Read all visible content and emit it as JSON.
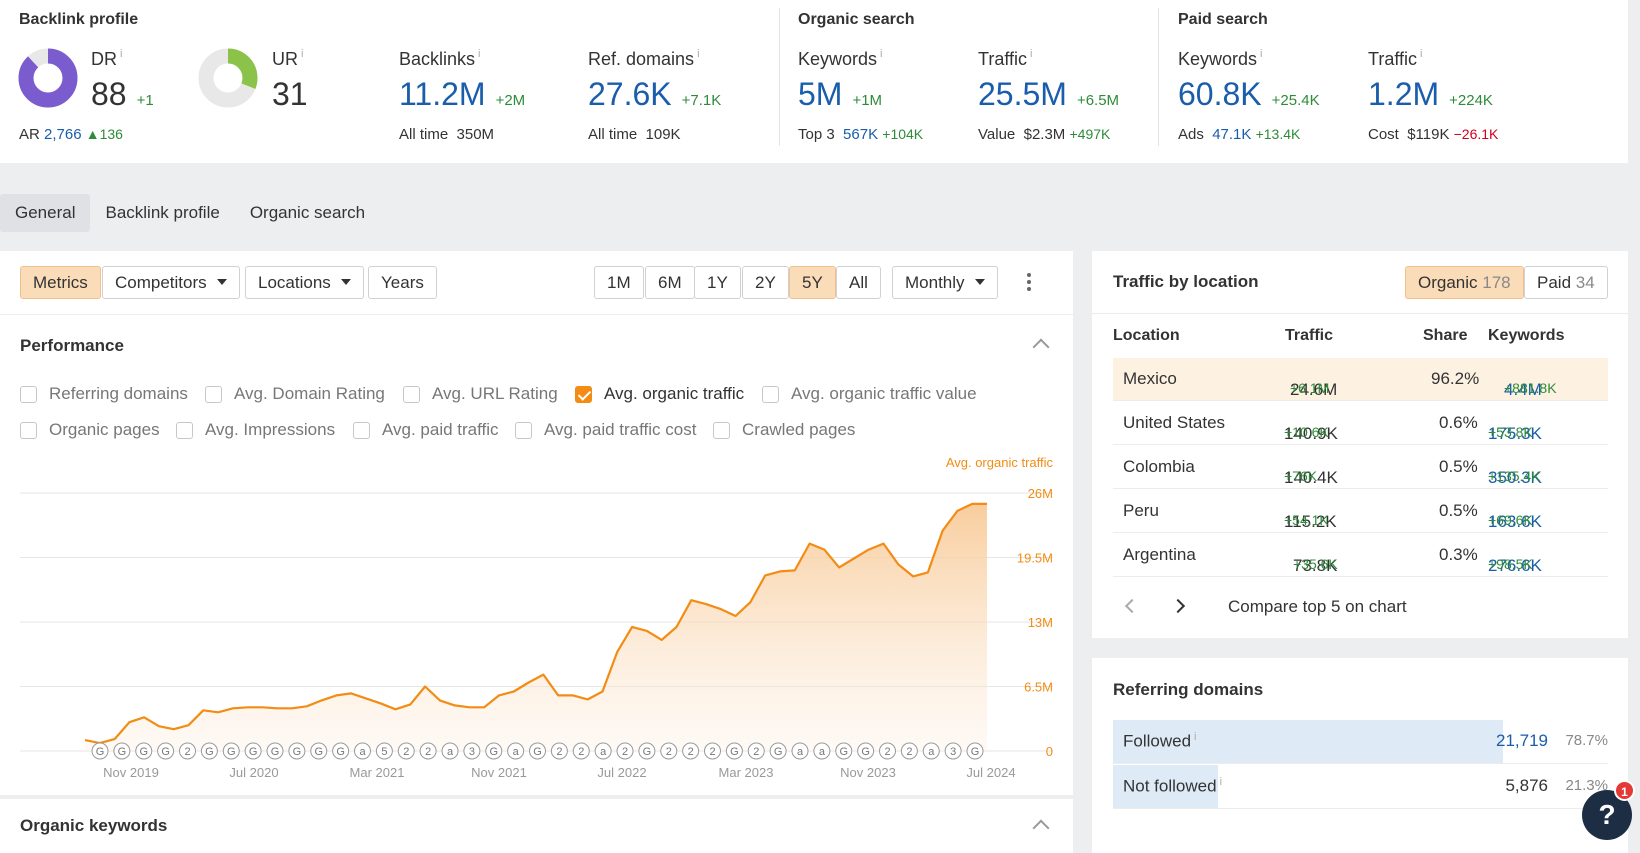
{
  "backlink_profile": {
    "title": "Backlink profile",
    "dr": {
      "label": "DR",
      "value": "88",
      "delta": "+1",
      "ring_fill": 0.88
    },
    "ur": {
      "label": "UR",
      "value": "31",
      "ring_fill": 0.31
    },
    "ar": {
      "label": "AR",
      "value": "2,766",
      "delta": "136"
    },
    "backlinks": {
      "label": "Backlinks",
      "value": "11.2M",
      "delta": "+2M",
      "sub_label": "All time",
      "sub_value": "350M"
    },
    "ref_domains": {
      "label": "Ref. domains",
      "value": "27.6K",
      "delta": "+7.1K",
      "sub_label": "All time",
      "sub_value": "109K"
    }
  },
  "organic_search": {
    "title": "Organic search",
    "keywords": {
      "label": "Keywords",
      "value": "5M",
      "delta": "+1M",
      "sub_label": "Top 3",
      "sub_value": "567K",
      "sub_delta": "+104K"
    },
    "traffic": {
      "label": "Traffic",
      "value": "25.5M",
      "delta": "+6.5M",
      "sub_label": "Value",
      "sub_value": "$2.3M",
      "sub_delta": "+497K"
    }
  },
  "paid_search": {
    "title": "Paid search",
    "keywords": {
      "label": "Keywords",
      "value": "60.8K",
      "delta": "+25.4K",
      "sub_label": "Ads",
      "sub_value": "47.1K",
      "sub_delta": "+13.4K"
    },
    "traffic": {
      "label": "Traffic",
      "value": "1.2M",
      "delta": "+224K",
      "sub_label": "Cost",
      "sub_value": "$119K",
      "sub_delta": "−26.1K"
    }
  },
  "info_mark": "i",
  "tabs": [
    "General",
    "Backlink profile",
    "Organic search"
  ],
  "toolbar": {
    "metrics": "Metrics",
    "competitors": "Competitors",
    "locations": "Locations",
    "years": "Years",
    "ranges": [
      "1M",
      "6M",
      "1Y",
      "2Y",
      "5Y",
      "All"
    ],
    "interval": "Monthly"
  },
  "performance": {
    "title": "Performance",
    "checkboxes": [
      {
        "label": "Referring domains",
        "checked": false
      },
      {
        "label": "Avg. Domain Rating",
        "checked": false
      },
      {
        "label": "Avg. URL Rating",
        "checked": false
      },
      {
        "label": "Avg. organic traffic",
        "checked": true
      },
      {
        "label": "Avg. organic traffic value",
        "checked": false
      },
      {
        "label": "Organic pages",
        "checked": false
      },
      {
        "label": "Avg. Impressions",
        "checked": false
      },
      {
        "label": "Avg. paid traffic",
        "checked": false
      },
      {
        "label": "Avg. paid traffic cost",
        "checked": false
      },
      {
        "label": "Crawled pages",
        "checked": false
      }
    ]
  },
  "chart_data": {
    "type": "area",
    "series": [
      {
        "name": "Avg. organic traffic",
        "color": "#f28c15",
        "values": [
          1.1,
          0.8,
          1.2,
          2.9,
          3.4,
          2.5,
          2.2,
          2.6,
          4.1,
          3.9,
          4.3,
          4.4,
          4.4,
          4.3,
          4.3,
          4.5,
          5.1,
          5.6,
          5.8,
          5.3,
          4.8,
          4.2,
          4.7,
          6.5,
          5.1,
          4.6,
          4.4,
          4.4,
          5.6,
          6.0,
          6.9,
          7.7,
          5.6,
          5.6,
          5.2,
          6.0,
          10.0,
          12.5,
          12.1,
          11.2,
          12.5,
          15.2,
          14.8,
          14.3,
          13.6,
          15.0,
          17.7,
          18.1,
          18.2,
          20.9,
          20.3,
          18.5,
          19.4,
          20.3,
          20.9,
          18.8,
          17.6,
          18.0,
          22.2,
          24.2,
          24.9,
          24.9
        ]
      }
    ],
    "x_tick_labels": [
      "Nov 2019",
      "Jul 2020",
      "Mar 2021",
      "Nov 2021",
      "Jul 2022",
      "Mar 2023",
      "Nov 2023",
      "Jul 2024"
    ],
    "y_tick_labels": [
      "0",
      "6.5M",
      "13M",
      "19.5M",
      "26M"
    ],
    "ylim": [
      0,
      26
    ],
    "ylabel": "Avg. organic traffic",
    "annotations": [
      "G",
      "G",
      "G",
      "G",
      "2",
      "G",
      "G",
      "G",
      "G",
      "G",
      "G",
      "G",
      "a",
      "5",
      "2",
      "2",
      "a",
      "3",
      "G",
      "a",
      "G",
      "2",
      "2",
      "a",
      "2",
      "G",
      "2",
      "2",
      "2",
      "G",
      "2",
      "G",
      "a",
      "a",
      "G",
      "G",
      "2",
      "2",
      "a",
      "3",
      "G"
    ]
  },
  "organic_keywords": {
    "title": "Organic keywords"
  },
  "traffic_by_location": {
    "title": "Traffic by location",
    "organic_label": "Organic",
    "organic_count": "178",
    "paid_label": "Paid",
    "paid_count": "34",
    "headers": [
      "Location",
      "Traffic",
      "Share",
      "Keywords"
    ],
    "rows": [
      {
        "location": "Mexico",
        "traffic": "24.6M",
        "traffic_delta": "+6.1M",
        "share": "96.2%",
        "keywords": "4.4M",
        "keywords_delta": "+881.8K"
      },
      {
        "location": "United States",
        "traffic": "140.9K",
        "traffic_delta": "+10.6K",
        "share": "0.6%",
        "keywords": "175.3K",
        "keywords_delta": "+53.8K"
      },
      {
        "location": "Colombia",
        "traffic": "140.4K",
        "traffic_delta": "+76K",
        "share": "0.5%",
        "keywords": "350.3K",
        "keywords_delta": "+135.4K"
      },
      {
        "location": "Peru",
        "traffic": "115.2K",
        "traffic_delta": "+54.1K",
        "share": "0.5%",
        "keywords": "163.6K",
        "keywords_delta": "+69.6K"
      },
      {
        "location": "Argentina",
        "traffic": "73.8K",
        "traffic_delta": "+35.6K",
        "share": "0.3%",
        "keywords": "276.6K",
        "keywords_delta": "+98.5K"
      }
    ],
    "compare_label": "Compare top 5 on chart"
  },
  "referring_domains": {
    "title": "Referring domains",
    "rows": [
      {
        "label": "Followed",
        "value": "21,719",
        "percent": "78.7%",
        "fraction": 0.787
      },
      {
        "label": "Not followed",
        "value": "5,876",
        "percent": "21.3%",
        "fraction": 0.213
      }
    ]
  },
  "help": {
    "label": "?",
    "badge": "1"
  },
  "colors": {
    "accent": "#f28c15",
    "link": "#1a5dab",
    "positive": "#2e8b3a",
    "negative": "#d0021b",
    "dr_ring": "#7b5ccf",
    "ur_ring": "#8bc34a"
  }
}
